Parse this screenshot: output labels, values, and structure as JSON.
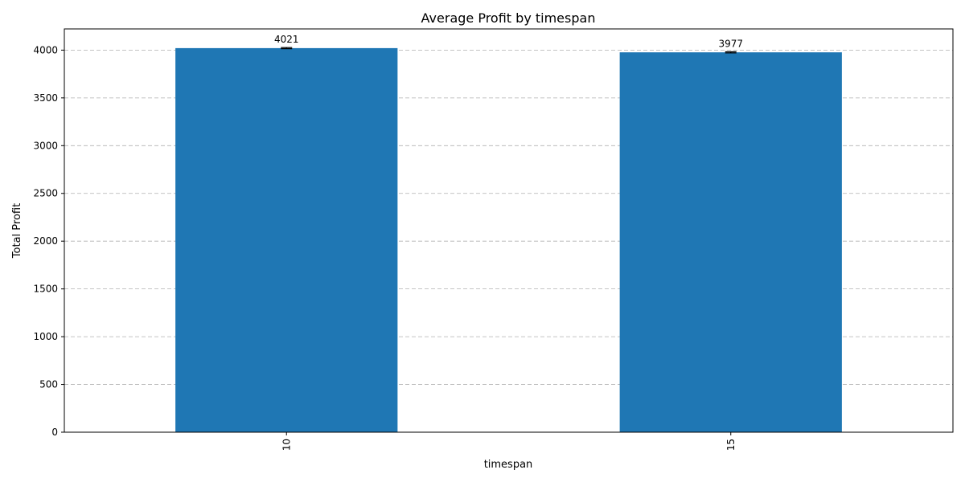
{
  "chart_data": {
    "type": "bar",
    "title": "Average Profit by timespan",
    "xlabel": "timespan",
    "ylabel": "Total Profit",
    "categories": [
      "10",
      "15"
    ],
    "values": [
      4021,
      3977
    ],
    "data_labels": [
      "4021",
      "3977"
    ],
    "error": [
      6,
      6
    ],
    "ylim": [
      0,
      4222
    ],
    "yticks": [
      0,
      500,
      1000,
      1500,
      2000,
      2500,
      3000,
      3500,
      4000
    ],
    "ytick_labels": [
      "0",
      "500",
      "1000",
      "1500",
      "2000",
      "2500",
      "3000",
      "3500",
      "4000"
    ],
    "grid": "y-dashed",
    "bar_color": "#1f77b4",
    "xtick_rotation": 90
  }
}
